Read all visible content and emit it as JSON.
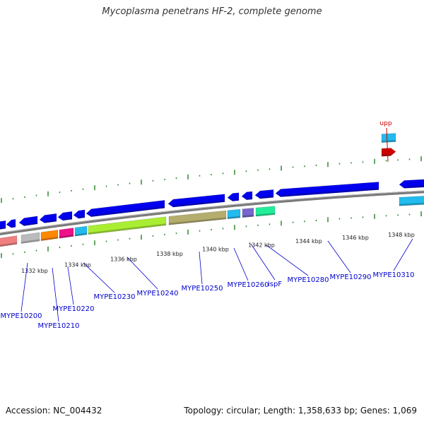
{
  "title": "Mycoplasma penetrans HF-2, complete genome",
  "footer": {
    "accession": "Accession: NC_004432",
    "summary": "Topology: circular; Length: 1,358,633 bp; Genes: 1,069"
  },
  "colors": {
    "backbone": "#7a7a7a",
    "tick": "#2e8b2e",
    "label": "#0000cc",
    "label_line": "#0000cc",
    "kbp_text": "#222222",
    "upp_label": "#cc0000"
  },
  "axis": {
    "unit": "kbp",
    "tick_labels": [
      "1332 kbp",
      "1334 kbp",
      "1336 kbp",
      "1338 kbp",
      "1340 kbp",
      "1342 kbp",
      "1344 kbp",
      "1346 kbp",
      "1348 kbp"
    ]
  },
  "genes_outer": [
    {
      "name": "upp",
      "color": "#cc0000",
      "strand": "+"
    },
    {
      "name": "",
      "color": "#22bbee",
      "strand": "+"
    }
  ],
  "genes_inner_arrows": [
    {
      "color": "#0000ee",
      "strand": "-"
    },
    {
      "color": "#0000ee",
      "strand": "-"
    },
    {
      "color": "#0000ee",
      "strand": "-"
    },
    {
      "color": "#0000ee",
      "strand": "-"
    },
    {
      "color": "#0000ee",
      "strand": "-"
    },
    {
      "color": "#0000ee",
      "strand": "-"
    },
    {
      "color": "#0000ee",
      "strand": "-"
    },
    {
      "color": "#0000ee",
      "strand": "-"
    },
    {
      "color": "#0000ee",
      "strand": "-"
    },
    {
      "color": "#0000ee",
      "strand": "-"
    },
    {
      "color": "#0000ee",
      "strand": "-"
    },
    {
      "color": "#0000ee",
      "strand": "-"
    }
  ],
  "genes_inner_blocks": [
    {
      "color": "#f08080"
    },
    {
      "color": "#bbbbbb"
    },
    {
      "color": "#ff8800"
    },
    {
      "color": "#ee1188"
    },
    {
      "color": "#22bbee"
    },
    {
      "color": "#aaee33"
    },
    {
      "color": "#b5ad6e"
    },
    {
      "color": "#22bbee"
    },
    {
      "color": "#7766cc"
    },
    {
      "color": "#22ee99"
    },
    {
      "color": "#22bbee"
    }
  ],
  "gene_labels": [
    "MYPE10200",
    "MYPE10210",
    "MYPE10220",
    "MYPE10230",
    "MYPE10240",
    "MYPE10250",
    "MYPE10260",
    "ispF",
    "MYPE10280",
    "MYPE10290",
    "MYPE10310"
  ]
}
